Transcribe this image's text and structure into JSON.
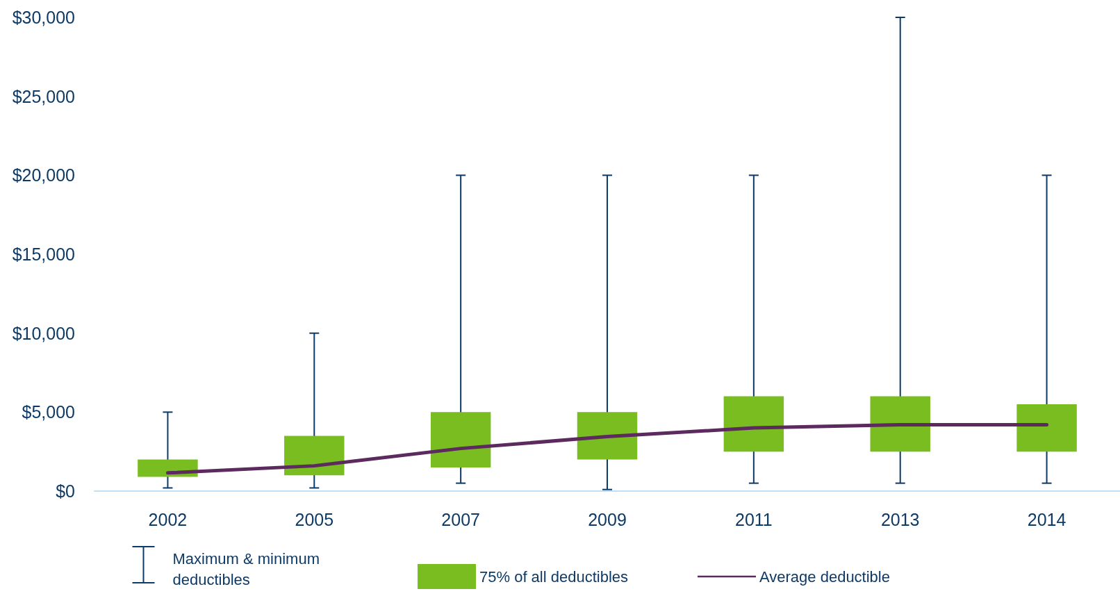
{
  "chart_data": {
    "type": "box",
    "categories": [
      "2002",
      "2005",
      "2007",
      "2009",
      "2011",
      "2013",
      "2014"
    ],
    "series": [
      {
        "name": "75% of all deductibles",
        "color": "#7abd20",
        "boxes": [
          {
            "low": 200,
            "q1": 900,
            "q3": 2000,
            "high": 5000
          },
          {
            "low": 200,
            "q1": 1000,
            "q3": 3500,
            "high": 10000
          },
          {
            "low": 500,
            "q1": 1500,
            "q3": 5000,
            "high": 20000
          },
          {
            "low": 100,
            "q1": 2000,
            "q3": 5000,
            "high": 20000
          },
          {
            "low": 500,
            "q1": 2500,
            "q3": 6000,
            "high": 20000
          },
          {
            "low": 500,
            "q1": 2500,
            "q3": 6000,
            "high": 30000
          },
          {
            "low": 500,
            "q1": 2500,
            "q3": 5500,
            "high": 20000
          }
        ]
      },
      {
        "name": "Average deductible",
        "type": "line",
        "color": "#5c2a5e",
        "values": [
          1150,
          1600,
          2700,
          3450,
          4000,
          4200,
          4200
        ]
      }
    ],
    "ylim": [
      0,
      30000
    ],
    "yticks": [
      {
        "value": 0,
        "label": "$0"
      },
      {
        "value": 5000,
        "label": "$5,000"
      },
      {
        "value": 10000,
        "label": "$10,000"
      },
      {
        "value": 15000,
        "label": "$15,000"
      },
      {
        "value": 20000,
        "label": "$20,000"
      },
      {
        "value": 25000,
        "label": "$25,000"
      },
      {
        "value": 30000,
        "label": "$30,000"
      }
    ],
    "annotations": [
      "Maximum & minimum deductibles"
    ],
    "legend": "bottom",
    "grid": false,
    "marker": "none"
  }
}
